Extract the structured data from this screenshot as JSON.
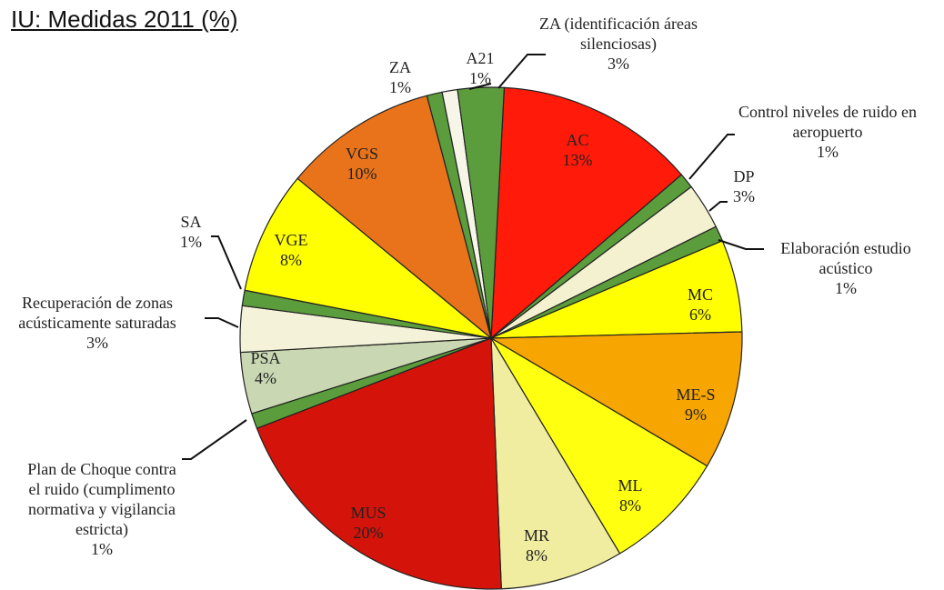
{
  "chart_data": {
    "type": "pie",
    "title": "IU: Medidas 2011 (%)",
    "categories": [
      "AC",
      "Control niveles de ruido en aeropuerto",
      "DP",
      "Elaboración estudio acústico",
      "MC",
      "ME-S",
      "ML",
      "MR",
      "MUS",
      "Plan de Choque contra el ruido (cumplimento normativa y vigilancia estricta)",
      "PSA",
      "Recuperación de zonas acústicamente saturadas",
      "SA",
      "VGE",
      "VGS",
      "ZA",
      "A21",
      "ZA (identificación áreas silenciosas)"
    ],
    "values": [
      13,
      1,
      3,
      1,
      6,
      9,
      8,
      8,
      20,
      1,
      4,
      3,
      1,
      8,
      10,
      1,
      1,
      3
    ],
    "value_labels": [
      "13%",
      "1%",
      "3%",
      "1%",
      "6%",
      "9%",
      "8%",
      "8%",
      "20%",
      "1%",
      "4%",
      "3%",
      "1%",
      "8%",
      "10%",
      "1%",
      "1%",
      "3%"
    ],
    "colors": [
      "#ff1a0a",
      "#5b9c3c",
      "#f3f1cf",
      "#5b9c3c",
      "#ffff00",
      "#f7a500",
      "#ffff10",
      "#f0eda0",
      "#d4140a",
      "#5b9c3c",
      "#c9d8b2",
      "#f4f2d8",
      "#5b9c3c",
      "#ffff00",
      "#e9731a",
      "#5b9c3c",
      "#f6f5e8",
      "#5b9c3c"
    ]
  }
}
